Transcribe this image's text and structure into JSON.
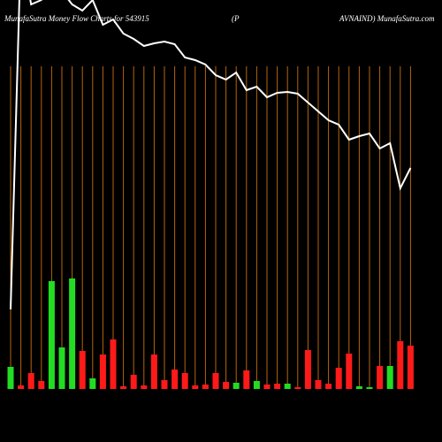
{
  "chart_data": {
    "type": "bar",
    "title": "MunafaSutra  Money Flow Charts for 543915",
    "title_middle": "(P",
    "title_right": "AVNAIND) MunafaSutra.com",
    "grid": true,
    "grid_color": "#b8650a",
    "series": [
      {
        "name": "money flow",
        "type": "bar",
        "values": [
          25,
          4,
          18,
          9,
          122,
          47,
          125,
          43,
          12,
          39,
          56,
          3,
          16,
          4,
          39,
          10,
          22,
          18,
          4,
          5,
          18,
          8,
          7,
          21,
          9,
          5,
          6,
          6,
          2,
          44,
          10,
          6,
          24,
          40,
          3,
          2,
          26,
          26,
          54,
          49
        ],
        "colors": [
          "#22dd22",
          "#ff1a1a",
          "#ff1a1a",
          "#ff1a1a",
          "#22dd22",
          "#22dd22",
          "#22dd22",
          "#ff1a1a",
          "#22dd22",
          "#ff1a1a",
          "#ff1a1a",
          "#ff1a1a",
          "#ff1a1a",
          "#ff1a1a",
          "#ff1a1a",
          "#ff1a1a",
          "#ff1a1a",
          "#ff1a1a",
          "#ff1a1a",
          "#ff1a1a",
          "#ff1a1a",
          "#ff1a1a",
          "#22dd22",
          "#ff1a1a",
          "#22dd22",
          "#ff1a1a",
          "#ff1a1a",
          "#22dd22",
          "#ff1a1a",
          "#ff1a1a",
          "#ff1a1a",
          "#ff1a1a",
          "#ff1a1a",
          "#ff1a1a",
          "#22dd22",
          "#22dd22",
          "#ff1a1a",
          "#22dd22",
          "#ff1a1a",
          "#ff1a1a"
        ]
      },
      {
        "name": "price",
        "type": "line",
        "color": "#ffffff",
        "values": [
          150,
          560,
          495,
          500,
          520,
          510,
          495,
          488,
          500,
          472,
          478,
          462,
          456,
          448,
          451,
          453,
          450,
          435,
          432,
          427,
          415,
          410,
          418,
          398,
          402,
          390,
          395,
          396,
          394,
          384,
          374,
          364,
          359,
          342,
          346,
          349,
          332,
          338,
          287,
          310
        ]
      }
    ]
  }
}
